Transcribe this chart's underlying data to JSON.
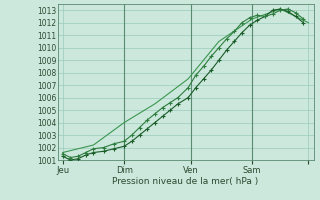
{
  "background_color": "#cce8dc",
  "grid_color": "#99ccbb",
  "line_color_1": "#1a5c28",
  "line_color_2": "#2e7d3e",
  "line_color_3": "#3a9650",
  "xlabel_text": "Pression niveau de la mer( hPa )",
  "xlim": [
    0,
    100
  ],
  "ylim": [
    1001,
    1013.5
  ],
  "yticks": [
    1001,
    1002,
    1003,
    1004,
    1005,
    1006,
    1007,
    1008,
    1009,
    1010,
    1011,
    1012,
    1013
  ],
  "xtick_positions": [
    2,
    26,
    52,
    76,
    98
  ],
  "xtick_labels": [
    "Jeu",
    "Dim",
    "Ven",
    "Sam",
    ""
  ],
  "vline_positions": [
    26,
    52,
    76
  ],
  "series1_x": [
    2,
    5,
    8,
    11,
    14,
    18,
    22,
    26,
    29,
    32,
    35,
    38,
    41,
    44,
    47,
    51,
    54,
    57,
    60,
    63,
    66,
    69,
    72,
    75,
    78,
    81,
    84,
    87,
    90,
    93,
    96
  ],
  "series1_y": [
    1001.3,
    1001.0,
    1001.1,
    1001.4,
    1001.6,
    1001.7,
    1001.9,
    1002.1,
    1002.5,
    1003.0,
    1003.5,
    1004.0,
    1004.5,
    1005.0,
    1005.5,
    1006.0,
    1006.8,
    1007.5,
    1008.2,
    1009.0,
    1009.8,
    1010.5,
    1011.2,
    1011.8,
    1012.2,
    1012.5,
    1013.0,
    1013.1,
    1012.9,
    1012.5,
    1012.0
  ],
  "series2_x": [
    2,
    5,
    8,
    11,
    14,
    18,
    22,
    26,
    29,
    32,
    35,
    38,
    41,
    44,
    47,
    51,
    54,
    57,
    60,
    63,
    66,
    69,
    72,
    75,
    78,
    81,
    84,
    87,
    90,
    93,
    96
  ],
  "series2_y": [
    1001.5,
    1001.2,
    1001.3,
    1001.6,
    1001.9,
    1002.0,
    1002.3,
    1002.5,
    1003.0,
    1003.6,
    1004.2,
    1004.7,
    1005.2,
    1005.6,
    1006.0,
    1006.8,
    1007.8,
    1008.5,
    1009.3,
    1010.0,
    1010.7,
    1011.3,
    1012.0,
    1012.4,
    1012.6,
    1012.5,
    1012.7,
    1013.0,
    1013.1,
    1012.8,
    1012.3
  ],
  "series3_x": [
    2,
    14,
    26,
    38,
    51,
    63,
    76,
    87,
    98
  ],
  "series3_y": [
    1001.6,
    1002.2,
    1004.0,
    1005.5,
    1007.5,
    1010.5,
    1012.3,
    1013.1,
    1012.0
  ],
  "marker": "+"
}
